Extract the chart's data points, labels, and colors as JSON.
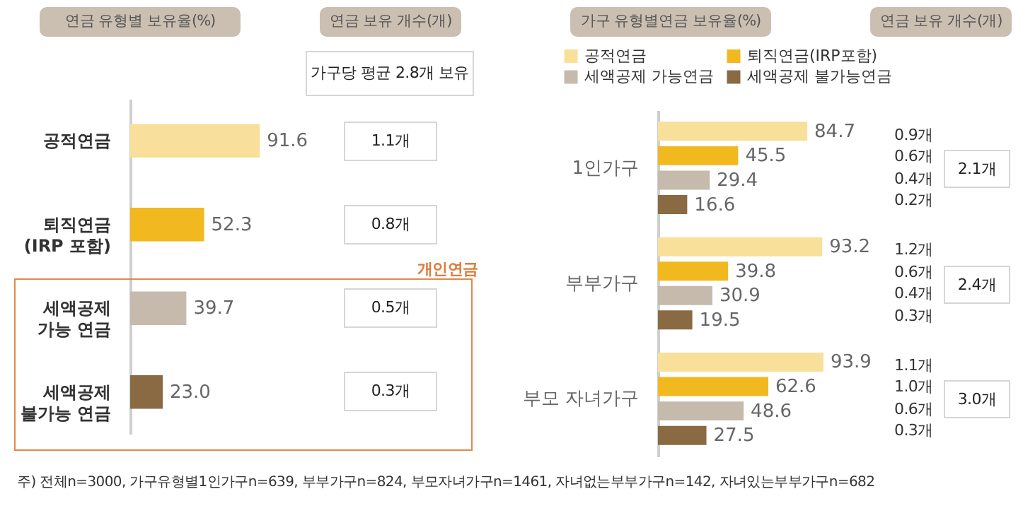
{
  "chart_data": [
    {
      "type": "bar",
      "orientation": "horizontal",
      "title": "연금 유형별 보유율(%)",
      "categories": [
        "공적연금",
        "퇴직연금 (IRP 포함)",
        "세액공제 가능 연금",
        "세액공제 불가능 연금"
      ],
      "values": [
        91.6,
        52.3,
        39.7,
        23.0
      ],
      "colors": [
        "#f9e09a",
        "#f2b81f",
        "#c5baac",
        "#8a6a43"
      ],
      "value_labels": [
        "91.6",
        "52.3",
        "39.7",
        "23.0"
      ],
      "legend": false,
      "tick_labels": "y",
      "annotations": [
        "연금 보유 개수(개)",
        "가구당 평균 2.8개 보유",
        "1.1개",
        "0.8개",
        "0.5개",
        "0.3개",
        "개인연금",
        "주) 전체n=3000, 가구유형별1인가구n=639, 부부가구n=824, 부모자녀가구n=1461, 자녀없는부부가구n=142, 자녀있는부부가구n=682"
      ]
    },
    {
      "type": "bar",
      "orientation": "horizontal",
      "title": "가구 유형별연금 보유율(%)",
      "categories": [
        "1인가구",
        "부부가구",
        "부모 자녀가구"
      ],
      "series": [
        {
          "name": "공적연금",
          "color": "#f9e09a",
          "values": [
            84.7,
            93.2,
            93.9
          ]
        },
        {
          "name": "퇴직연금(IRP포함)",
          "color": "#f2b81f",
          "values": [
            45.5,
            39.8,
            62.6
          ]
        },
        {
          "name": "세액공제 가능연금",
          "color": "#c5baac",
          "values": [
            29.4,
            30.9,
            48.6
          ]
        },
        {
          "name": "세액공제 불가능연금",
          "color": "#8a6a43",
          "values": [
            16.6,
            19.5,
            27.5
          ]
        }
      ],
      "data_labels": true,
      "legend": "top",
      "tick_labels": "y",
      "annotations": [
        "연금 보유 개수(개)",
        "0.9개",
        "0.6개",
        "0.4개",
        "0.2개",
        "2.1개",
        "1.2개",
        "0.6개",
        "0.4개",
        "0.3개",
        "2.4개",
        "1.1개",
        "1.0개",
        "0.6개",
        "0.3개",
        "3.0개"
      ]
    }
  ]
}
